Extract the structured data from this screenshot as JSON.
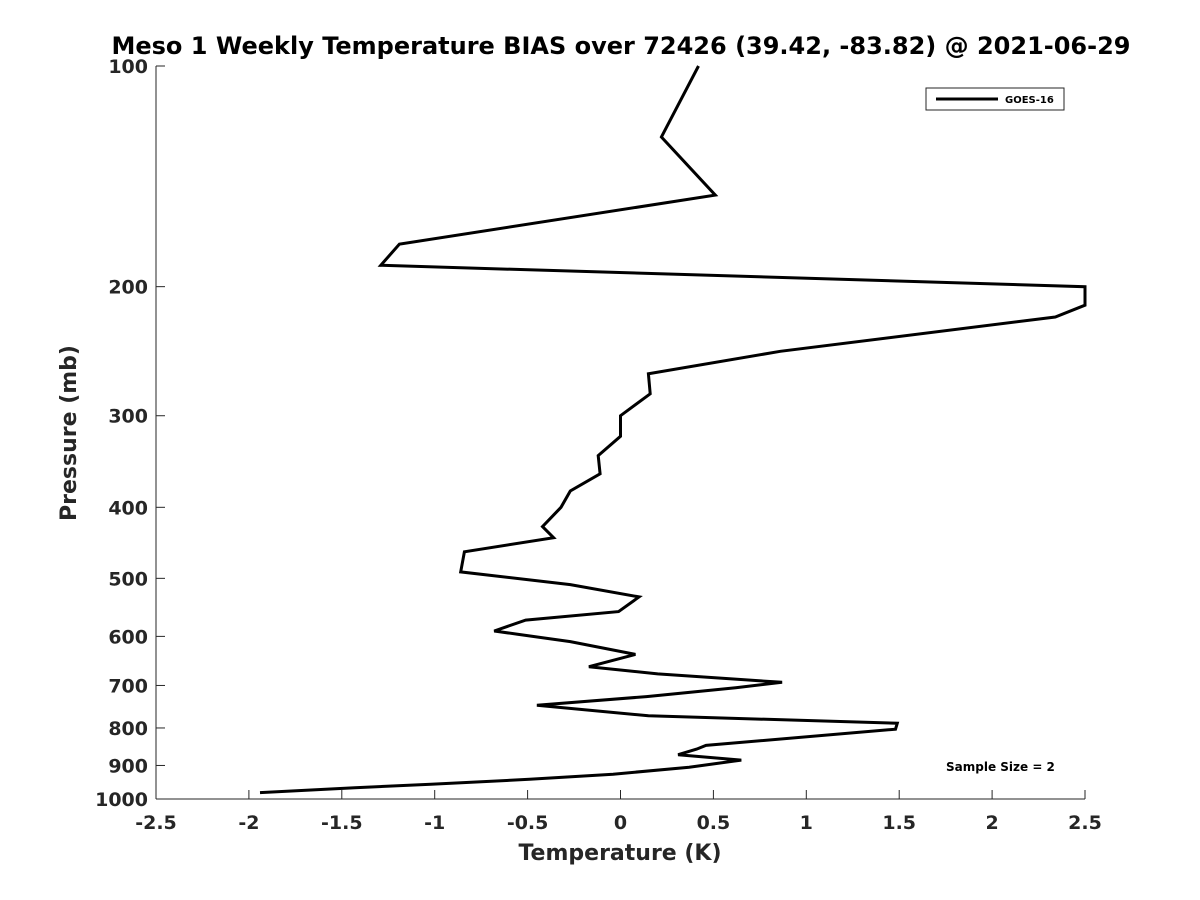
{
  "chart_data": {
    "type": "line",
    "title": "Meso 1 Weekly Temperature BIAS over 72426 (39.42, -83.82) @ 2021-06-29",
    "xlabel": "Temperature (K)",
    "ylabel": "Pressure (mb)",
    "xlim": [
      -2.5,
      2.5
    ],
    "ylim": [
      100,
      1000
    ],
    "y_scale": "log",
    "y_direction": "reversed",
    "x_ticks": [
      -2.5,
      -2,
      -1.5,
      -1,
      -0.5,
      0,
      0.5,
      1,
      1.5,
      2,
      2.5
    ],
    "x_tick_labels": [
      "-2.5",
      "-2",
      "-1.5",
      "-1",
      "-0.5",
      "0",
      "0.5",
      "1",
      "1.5",
      "2",
      "2.5"
    ],
    "y_ticks": [
      100,
      200,
      300,
      400,
      500,
      600,
      700,
      800,
      900,
      1000
    ],
    "y_tick_labels": [
      "100",
      "200",
      "300",
      "400",
      "500",
      "600",
      "700",
      "800",
      "900",
      "1000"
    ],
    "grid": false,
    "legend_position": "top-right",
    "annotation": "Sample Size = 2",
    "line_color": "#000000",
    "series": [
      {
        "name": "GOES-16",
        "points": [
          {
            "x": 0.42,
            "y": 100
          },
          {
            "x": 0.22,
            "y": 125
          },
          {
            "x": 0.51,
            "y": 150
          },
          {
            "x": -1.19,
            "y": 175
          },
          {
            "x": -1.29,
            "y": 187
          },
          {
            "x": 2.5,
            "y": 200
          },
          {
            "x": 2.5,
            "y": 212
          },
          {
            "x": 2.34,
            "y": 220
          },
          {
            "x": 0.86,
            "y": 245
          },
          {
            "x": 0.15,
            "y": 263
          },
          {
            "x": 0.16,
            "y": 280
          },
          {
            "x": 0.0,
            "y": 300
          },
          {
            "x": 0.0,
            "y": 320
          },
          {
            "x": -0.12,
            "y": 340
          },
          {
            "x": -0.11,
            "y": 360
          },
          {
            "x": -0.27,
            "y": 380
          },
          {
            "x": -0.32,
            "y": 400
          },
          {
            "x": -0.42,
            "y": 425
          },
          {
            "x": -0.36,
            "y": 440
          },
          {
            "x": -0.84,
            "y": 460
          },
          {
            "x": -0.86,
            "y": 490
          },
          {
            "x": -0.27,
            "y": 510
          },
          {
            "x": 0.1,
            "y": 530
          },
          {
            "x": -0.01,
            "y": 555
          },
          {
            "x": -0.51,
            "y": 570
          },
          {
            "x": -0.68,
            "y": 590
          },
          {
            "x": -0.27,
            "y": 610
          },
          {
            "x": 0.08,
            "y": 635
          },
          {
            "x": -0.17,
            "y": 660
          },
          {
            "x": 0.2,
            "y": 675
          },
          {
            "x": 0.87,
            "y": 693
          },
          {
            "x": 0.62,
            "y": 705
          },
          {
            "x": 0.14,
            "y": 725
          },
          {
            "x": -0.45,
            "y": 745
          },
          {
            "x": 0.15,
            "y": 770
          },
          {
            "x": 1.49,
            "y": 788
          },
          {
            "x": 1.48,
            "y": 803
          },
          {
            "x": 0.46,
            "y": 845
          },
          {
            "x": 0.41,
            "y": 855
          },
          {
            "x": 0.31,
            "y": 870
          },
          {
            "x": 0.65,
            "y": 885
          },
          {
            "x": 0.37,
            "y": 905
          },
          {
            "x": -0.04,
            "y": 925
          },
          {
            "x": -0.49,
            "y": 940
          },
          {
            "x": -1.02,
            "y": 955
          },
          {
            "x": -1.43,
            "y": 965
          },
          {
            "x": -1.94,
            "y": 980
          }
        ]
      }
    ]
  }
}
